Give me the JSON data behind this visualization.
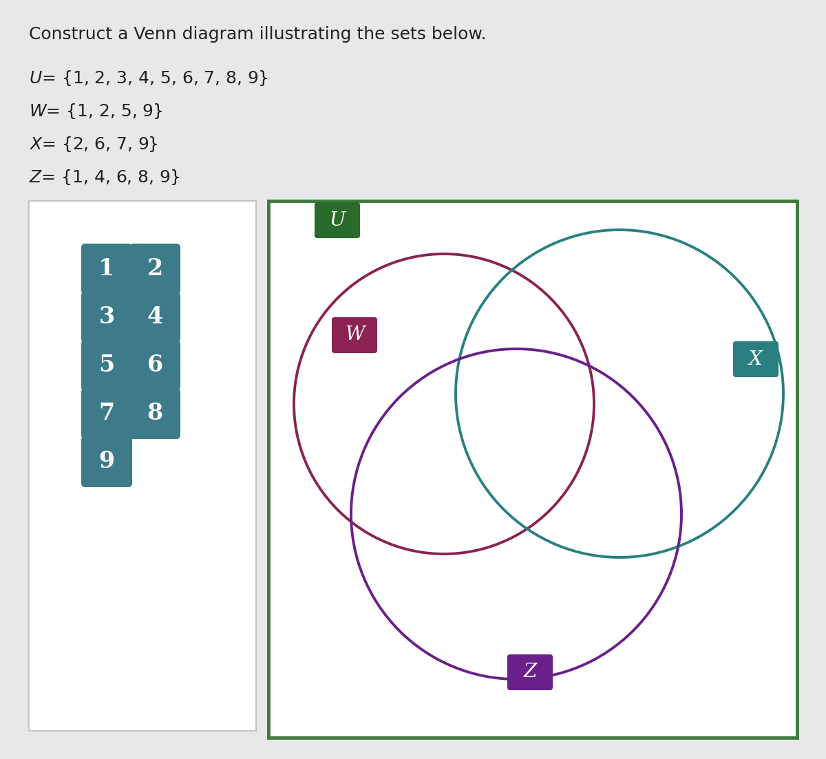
{
  "title": "Construct a Venn diagram illustrating the sets below.",
  "background_color": "#e8e8e8",
  "left_panel_bg": "#ffffff",
  "right_panel_bg": "#ffffff",
  "outer_border_color": "#3d7a3d",
  "number_tiles": [
    {
      "num": "1",
      "col": 0,
      "row": 0
    },
    {
      "num": "2",
      "col": 1,
      "row": 0
    },
    {
      "num": "3",
      "col": 0,
      "row": 1
    },
    {
      "num": "4",
      "col": 1,
      "row": 1
    },
    {
      "num": "5",
      "col": 0,
      "row": 2
    },
    {
      "num": "6",
      "col": 1,
      "row": 2
    },
    {
      "num": "7",
      "col": 0,
      "row": 3
    },
    {
      "num": "8",
      "col": 1,
      "row": 3
    },
    {
      "num": "9",
      "col": 0,
      "row": 4
    }
  ],
  "tile_color": "#3d7a8a",
  "W_color": "#8b2252",
  "X_color": "#2a8080",
  "Z_color": "#6a1f8a",
  "U_color": "#2a6a2a",
  "label_fg": "#ffffff"
}
